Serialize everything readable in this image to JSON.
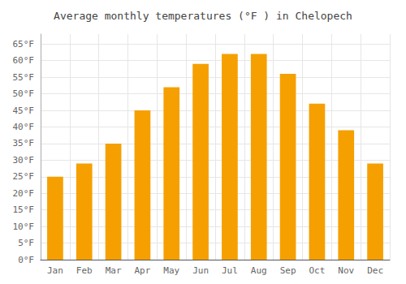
{
  "chart_data": {
    "type": "bar",
    "title": "Average monthly temperatures (°F ) in Chelopech",
    "categories": [
      "Jan",
      "Feb",
      "Mar",
      "Apr",
      "May",
      "Jun",
      "Jul",
      "Aug",
      "Sep",
      "Oct",
      "Nov",
      "Dec"
    ],
    "values": [
      25,
      29,
      35,
      45,
      52,
      59,
      62,
      62,
      56,
      47,
      39,
      29
    ],
    "color": "#F5A000",
    "ylim": [
      0,
      68
    ],
    "yticks": [
      {
        "value": 0,
        "label": "0°F"
      },
      {
        "value": 5,
        "label": "5°F"
      },
      {
        "value": 10,
        "label": "10°F"
      },
      {
        "value": 15,
        "label": "15°F"
      },
      {
        "value": 20,
        "label": "20°F"
      },
      {
        "value": 25,
        "label": "25°F"
      },
      {
        "value": 30,
        "label": "30°F"
      },
      {
        "value": 35,
        "label": "35°F"
      },
      {
        "value": 40,
        "label": "40°F"
      },
      {
        "value": 45,
        "label": "45°F"
      },
      {
        "value": 50,
        "label": "50°F"
      },
      {
        "value": 55,
        "label": "55°F"
      },
      {
        "value": 60,
        "label": "60°F"
      },
      {
        "value": 65,
        "label": "65°F"
      }
    ],
    "grid": true
  }
}
